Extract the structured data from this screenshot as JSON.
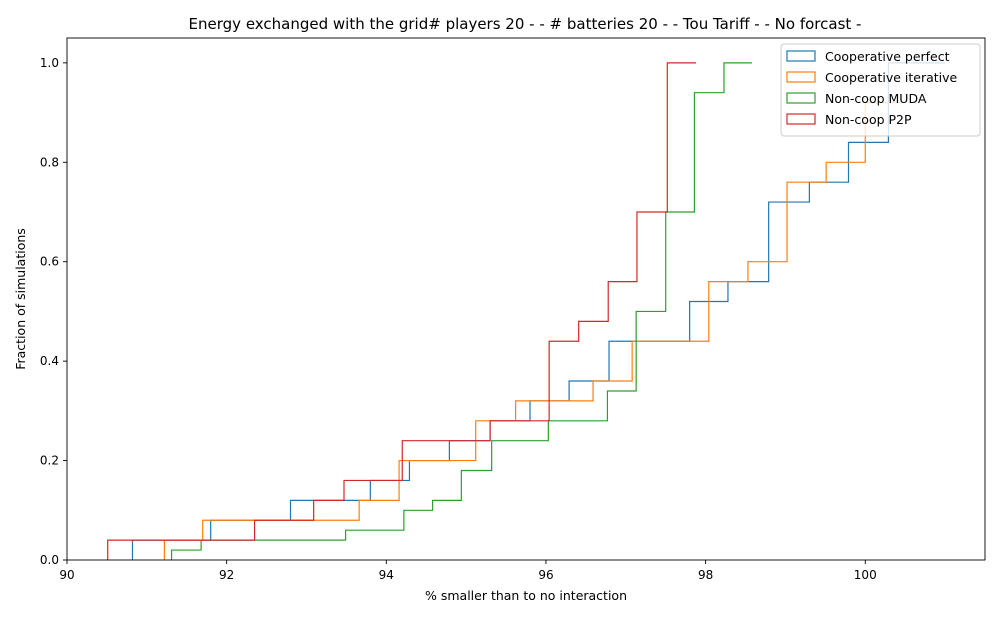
{
  "chart_data": {
    "type": "line",
    "title": "Energy exchanged with the grid# players 20 - - # batteries 20 - - Tou Tariff -  - No forcast -",
    "xlabel": "% smaller than to no interaction",
    "ylabel": "Fraction of simulations",
    "xlim": [
      90.0,
      101.5
    ],
    "ylim": [
      0.0,
      1.05
    ],
    "xticks": [
      {
        "value": 90,
        "label": "90"
      },
      {
        "value": 92,
        "label": "92"
      },
      {
        "value": 94,
        "label": "94"
      },
      {
        "value": 96,
        "label": "96"
      },
      {
        "value": 98,
        "label": "98"
      },
      {
        "value": 100,
        "label": "100"
      }
    ],
    "yticks": [
      {
        "value": 0.0,
        "label": "0.0"
      },
      {
        "value": 0.2,
        "label": "0.2"
      },
      {
        "value": 0.4,
        "label": "0.4"
      },
      {
        "value": 0.6,
        "label": "0.6"
      },
      {
        "value": 0.8,
        "label": "0.8"
      },
      {
        "value": 1.0,
        "label": "1.0"
      }
    ],
    "grid": false,
    "legend_position": "top-right",
    "step_style": "cumulative histogram (step outline)",
    "series": [
      {
        "name": "Cooperative perfect",
        "color": "#1f77b4",
        "edges": [
          90.82,
          91.8,
          92.8,
          93.8,
          94.29,
          94.79,
          95.3,
          95.8,
          96.29,
          96.79,
          97.8,
          98.28,
          98.79,
          99.3,
          99.79,
          100.29,
          101.0
        ],
        "cumulative": [
          0.04,
          0.08,
          0.12,
          0.16,
          0.2,
          0.24,
          0.28,
          0.32,
          0.36,
          0.44,
          0.52,
          0.56,
          0.72,
          0.76,
          0.84,
          1.0
        ]
      },
      {
        "name": "Cooperative iterative",
        "color": "#ff7f0e",
        "edges": [
          91.22,
          91.7,
          93.66,
          94.16,
          95.12,
          95.62,
          96.59,
          97.08,
          98.04,
          98.53,
          99.02,
          99.51,
          100.0,
          100.5
        ],
        "cumulative": [
          0.04,
          0.08,
          0.12,
          0.2,
          0.28,
          0.32,
          0.36,
          0.44,
          0.56,
          0.6,
          0.76,
          0.8,
          0.92
        ]
      },
      {
        "name": "Non-coop MUDA",
        "color": "#2ca02c",
        "edges": [
          91.31,
          91.68,
          93.49,
          94.22,
          94.58,
          94.94,
          95.32,
          96.03,
          96.77,
          97.13,
          97.5,
          97.86,
          98.23,
          98.58
        ],
        "cumulative": [
          0.02,
          0.04,
          0.06,
          0.1,
          0.12,
          0.18,
          0.24,
          0.28,
          0.34,
          0.5,
          0.7,
          0.94,
          1.0
        ]
      },
      {
        "name": "Non-coop P2P",
        "color": "#d62728",
        "edges": [
          90.51,
          92.35,
          93.09,
          93.47,
          94.2,
          95.3,
          96.04,
          96.41,
          96.78,
          97.14,
          97.52,
          97.88
        ],
        "cumulative": [
          0.04,
          0.08,
          0.12,
          0.16,
          0.24,
          0.28,
          0.44,
          0.48,
          0.56,
          0.7,
          1.0
        ]
      }
    ]
  }
}
